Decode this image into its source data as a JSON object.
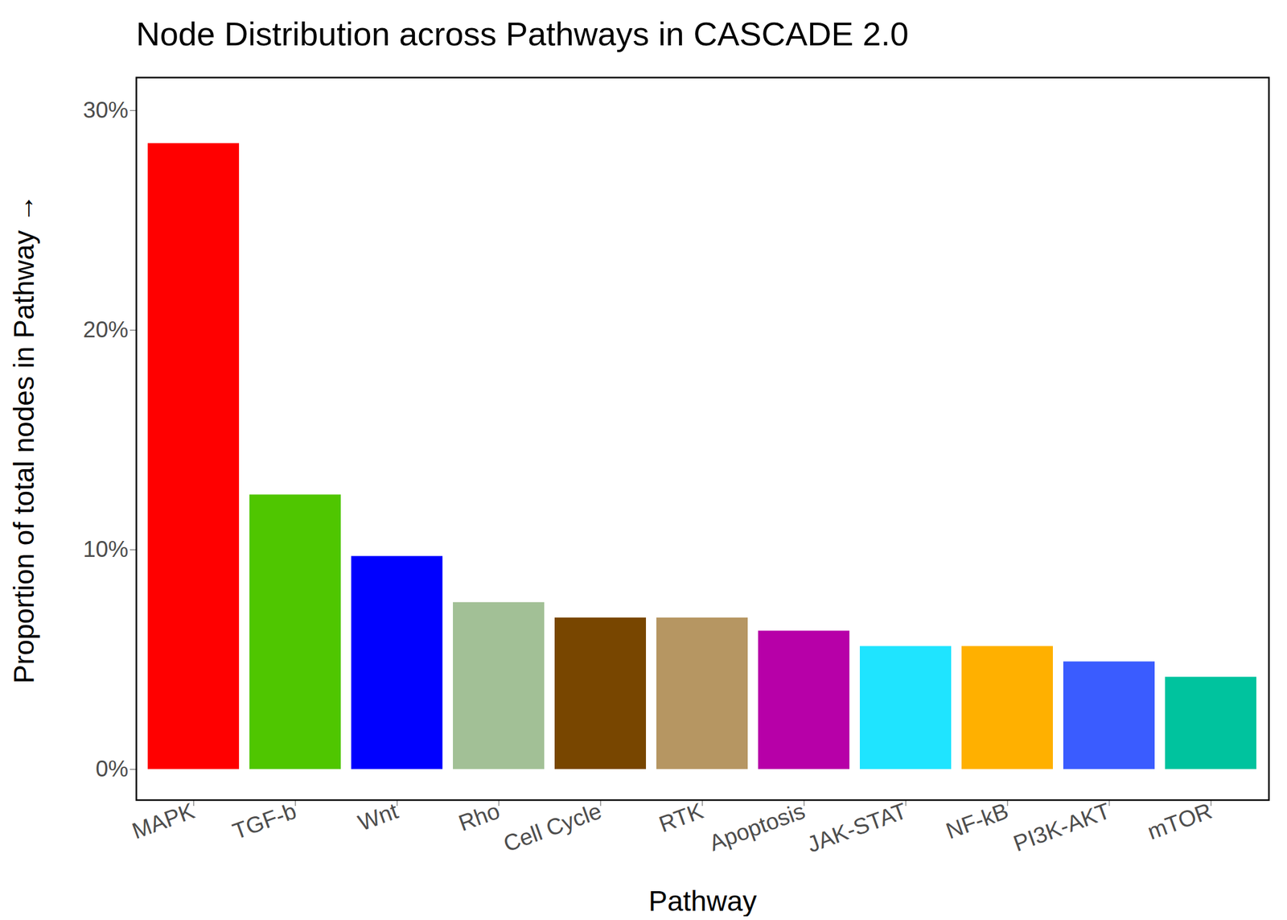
{
  "chart_data": {
    "type": "bar",
    "title": "Node Distribution across Pathways in CASCADE 2.0",
    "x_label": "Pathway",
    "y_label": "Proportion of total nodes in Pathway",
    "categories": [
      "MAPK",
      "TGF-b",
      "Wnt",
      "Rho",
      "Cell Cycle",
      "RTK",
      "Apoptosis",
      "JAK-STAT",
      "NF-kB",
      "PI3K-AKT",
      "mTOR"
    ],
    "values": [
      28.5,
      12.5,
      9.7,
      7.6,
      6.9,
      6.9,
      6.3,
      5.6,
      5.6,
      4.9,
      4.2
    ],
    "colors": [
      "#ff0000",
      "#4fc600",
      "#0000ff",
      "#a2c096",
      "#784600",
      "#b69662",
      "#b700a8",
      "#1fe4ff",
      "#ffb000",
      "#3a5cff",
      "#00c39e"
    ],
    "ylim": [
      -1.4,
      31.5
    ],
    "yticks": [
      {
        "value": 0,
        "label": "0%"
      },
      {
        "value": 10,
        "label": "10%"
      },
      {
        "value": 20,
        "label": "20%"
      },
      {
        "value": 30,
        "label": "30%"
      }
    ],
    "grid": false
  }
}
